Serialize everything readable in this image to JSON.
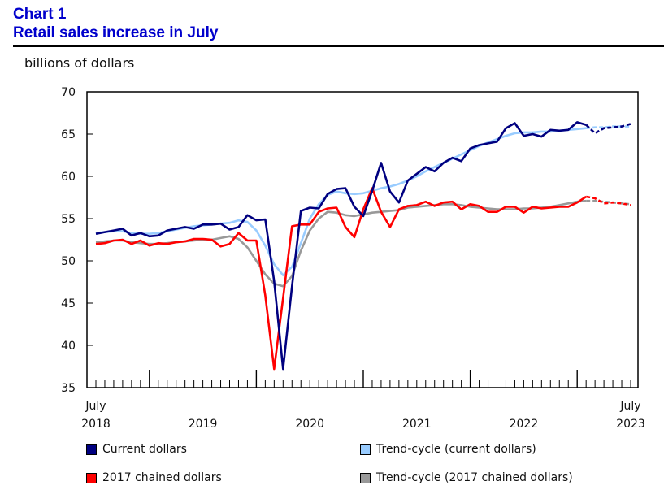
{
  "chart_data": {
    "type": "line",
    "title_prefix": "Chart 1",
    "title": "Retail sales increase in July",
    "ylabel": "billions of dollars",
    "ylim": [
      35,
      70
    ],
    "yticks": [
      "35",
      "40",
      "45",
      "50",
      "55",
      "60",
      "65",
      "70"
    ],
    "x_start": "2018-07",
    "x_end": "2023-07",
    "xtick_labels": [
      {
        "month": "July",
        "year": "2018"
      },
      {
        "year": "2019"
      },
      {
        "year": "2020"
      },
      {
        "year": "2021"
      },
      {
        "year": "2022"
      },
      {
        "month": "July",
        "year": "2023"
      }
    ],
    "series": [
      {
        "name": "Current dollars",
        "color": "#000080",
        "marker": "",
        "values": [
          53.2,
          53.4,
          53.6,
          53.8,
          53.0,
          53.3,
          52.9,
          53.0,
          53.6,
          53.8,
          54.0,
          53.8,
          54.3,
          54.3,
          54.4,
          53.7,
          54.0,
          55.4,
          54.8,
          54.9,
          47.6,
          37.2,
          47.0,
          55.9,
          56.3,
          56.2,
          57.9,
          58.5,
          58.6,
          56.4,
          55.3,
          58.3,
          61.6,
          58.2,
          56.9,
          59.5,
          60.3,
          61.1,
          60.6,
          61.6,
          62.2,
          61.8,
          63.3,
          63.7,
          63.9,
          64.1,
          65.7,
          66.3,
          64.8,
          65.0,
          64.7,
          65.5,
          65.4,
          65.5,
          66.4,
          66.1,
          65.1,
          65.7,
          65.8,
          65.9,
          66.2
        ]
      },
      {
        "name": "Trend-cycle (current dollars)",
        "color": "#99ccff",
        "marker": "",
        "values": [
          53.3,
          53.4,
          53.5,
          53.5,
          53.3,
          53.2,
          53.2,
          53.3,
          53.5,
          53.7,
          53.9,
          54.1,
          54.2,
          54.3,
          54.4,
          54.5,
          54.8,
          54.6,
          53.6,
          51.8,
          49.6,
          48.3,
          49.3,
          52.1,
          55.0,
          56.7,
          57.8,
          58.2,
          58.0,
          57.9,
          58.0,
          58.3,
          58.6,
          58.8,
          59.1,
          59.5,
          60.0,
          60.6,
          61.1,
          61.6,
          62.1,
          62.6,
          63.1,
          63.6,
          64.0,
          64.4,
          64.8,
          65.1,
          65.2,
          65.2,
          65.3,
          65.3,
          65.4,
          65.5,
          65.6,
          65.7,
          65.8,
          65.8,
          65.9,
          65.9,
          65.9
        ]
      },
      {
        "name": "2017 chained dollars",
        "color": "#ff0000",
        "marker": "",
        "values": [
          52.0,
          52.1,
          52.4,
          52.5,
          52.0,
          52.4,
          51.8,
          52.1,
          52.0,
          52.2,
          52.3,
          52.6,
          52.6,
          52.5,
          51.7,
          52.0,
          53.3,
          52.4,
          52.4,
          45.9,
          37.2,
          45.6,
          54.1,
          54.3,
          54.3,
          55.8,
          56.2,
          56.3,
          54.0,
          52.8,
          56.1,
          58.6,
          55.8,
          54.0,
          56.1,
          56.5,
          56.6,
          57.0,
          56.5,
          56.9,
          57.0,
          56.1,
          56.7,
          56.5,
          55.8,
          55.8,
          56.4,
          56.4,
          55.7,
          56.4,
          56.2,
          56.3,
          56.4,
          56.4,
          56.9,
          57.6,
          57.4,
          56.8,
          56.9,
          56.8,
          56.6
        ]
      },
      {
        "name": "Trend-cycle (2017 chained dollars)",
        "color": "#999999",
        "marker": "",
        "values": [
          52.2,
          52.3,
          52.4,
          52.4,
          52.2,
          52.1,
          52.0,
          52.0,
          52.1,
          52.2,
          52.3,
          52.4,
          52.5,
          52.5,
          52.7,
          52.9,
          52.6,
          51.6,
          50.0,
          48.4,
          47.3,
          47.0,
          48.2,
          51.2,
          53.6,
          55.0,
          55.8,
          55.7,
          55.4,
          55.3,
          55.5,
          55.7,
          55.8,
          55.9,
          56.0,
          56.3,
          56.4,
          56.5,
          56.6,
          56.7,
          56.7,
          56.6,
          56.4,
          56.3,
          56.2,
          56.1,
          56.1,
          56.1,
          56.2,
          56.2,
          56.3,
          56.4,
          56.6,
          56.8,
          57.0,
          57.1,
          57.1,
          57.0,
          56.9,
          56.8,
          56.7
        ]
      }
    ]
  }
}
